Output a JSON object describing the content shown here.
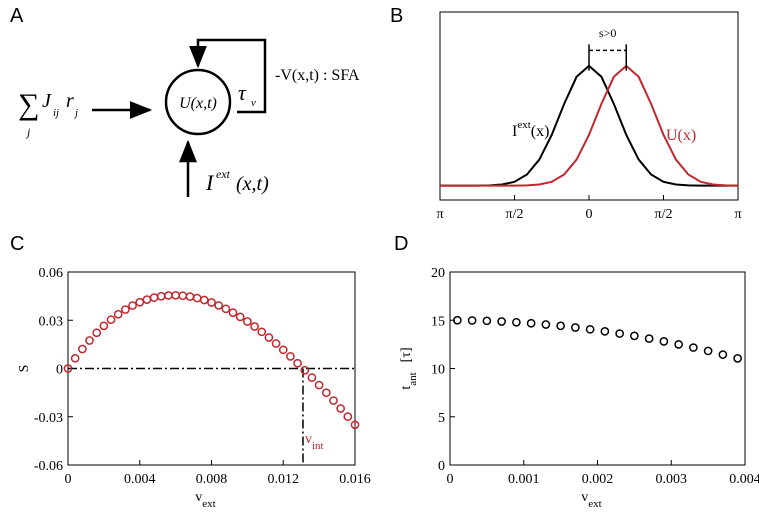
{
  "panel_labels": [
    "A",
    "B",
    "C",
    "D"
  ],
  "diagram": {
    "input_sum": {
      "symbol": "∑",
      "index": "j",
      "term": "J",
      "term_sub": "ij",
      "rate": "r",
      "rate_sub": "j"
    },
    "node": "U(x,t)",
    "time_constant": {
      "symbol": "τ",
      "sub": "v"
    },
    "feedback": "-V(x,t) : SFA",
    "external": {
      "symbol": "I",
      "sup": "ext",
      "args": "(x,t)"
    }
  },
  "chart_data": [
    {
      "type": "line",
      "xlim": [
        -3.1416,
        3.1416
      ],
      "ylim": [
        -0.12,
        1.45
      ],
      "xticks": [
        {
          "value": -3.1416,
          "label": "π"
        },
        {
          "value": -1.5708,
          "label": "π/2"
        },
        0,
        {
          "value": 1.5708,
          "label": "π/2"
        },
        {
          "value": 3.1416,
          "label": "π"
        }
      ],
      "x": [
        -3.1416,
        -2.8798,
        -2.618,
        -2.3562,
        -2.0944,
        -1.8326,
        -1.5708,
        -1.309,
        -1.0472,
        -0.7854,
        -0.5236,
        -0.2618,
        0,
        0.2618,
        0.5236,
        0.7854,
        1.0472,
        1.309,
        1.5708,
        1.8326,
        2.0944,
        2.3562,
        2.618,
        2.8798,
        3.1416
      ],
      "series": [
        {
          "label": {
            "base": "I",
            "sup": "ext",
            "rest": "(x)"
          },
          "color": "#000000",
          "values": [
            0,
            0,
            0,
            0,
            0.0023,
            0.0094,
            0.032,
            0.093,
            0.218,
            0.424,
            0.683,
            0.909,
            1,
            0.909,
            0.683,
            0.424,
            0.218,
            0.093,
            0.032,
            0.0094,
            0.0023,
            0,
            0,
            0,
            0
          ]
        },
        {
          "label": {
            "base": "U(x)"
          },
          "color": "#c1272d",
          "values": [
            0,
            0,
            0,
            0,
            0,
            0,
            0,
            0.0023,
            0.0094,
            0.032,
            0.093,
            0.218,
            0.424,
            0.683,
            0.909,
            1,
            0.909,
            0.683,
            0.424,
            0.218,
            0.093,
            0.032,
            0.0094,
            0.0023,
            0
          ]
        }
      ],
      "shift": {
        "label": "s>0",
        "from": 0,
        "to": 0.7854
      }
    },
    {
      "type": "scatter",
      "xlim": [
        0,
        0.016
      ],
      "ylim": [
        -0.06,
        0.06
      ],
      "xticks": [
        0,
        0.004,
        0.008,
        0.012,
        0.016
      ],
      "yticks": [
        -0.06,
        -0.03,
        0,
        0.03,
        0.06
      ],
      "x_label": {
        "base": "v",
        "sub": "ext"
      },
      "y_label": {
        "base": "S"
      },
      "x": [
        0,
        0.0004,
        0.0008,
        0.0012,
        0.0016,
        0.002,
        0.0024,
        0.0028,
        0.0032,
        0.0036,
        0.004,
        0.0044,
        0.0048,
        0.0052,
        0.0056,
        0.006,
        0.0064,
        0.0068,
        0.0072,
        0.0076,
        0.008,
        0.0084,
        0.0088,
        0.0092,
        0.0096,
        0.01,
        0.0104,
        0.0108,
        0.0112,
        0.0116,
        0.012,
        0.0124,
        0.0128,
        0.0132,
        0.0136,
        0.014,
        0.0144,
        0.0148,
        0.0152,
        0.0156,
        0.016
      ],
      "series": [
        {
          "color": "#c1272d",
          "values": [
            0,
            0.00632,
            0.01212,
            0.01741,
            0.02221,
            0.02651,
            0.03035,
            0.03372,
            0.03664,
            0.03913,
            0.04119,
            0.04283,
            0.04408,
            0.04493,
            0.04541,
            0.04552,
            0.04528,
            0.0447,
            0.04379,
            0.04257,
            0.04103,
            0.03921,
            0.03711,
            0.03473,
            0.0321,
            0.02923,
            0.02612,
            0.0228,
            0.01926,
            0.01553,
            0.01162,
            0.00753,
            0.00328,
            -0.00111,
            -0.00564,
            -0.0103,
            -0.01506,
            -0.01993,
            -0.02488,
            -0.02991,
            -0.035
          ]
        }
      ],
      "reference_lines": {
        "y": 0,
        "x": 0.0131,
        "x_label": {
          "base": "v",
          "sub": "int"
        },
        "color": "#c1272d"
      }
    },
    {
      "type": "scatter",
      "xlim": [
        0,
        0.004
      ],
      "ylim": [
        0,
        20
      ],
      "xticks": [
        0,
        0.001,
        0.002,
        0.003,
        0.004
      ],
      "yticks": [
        0,
        5,
        10,
        15,
        20
      ],
      "x_label": {
        "base": "v",
        "sub": "ext"
      },
      "y_label": {
        "base": "t",
        "sub": "ant",
        "unit": "[τ]"
      },
      "x": [
        0.0001,
        0.0003,
        0.0005,
        0.0007,
        0.0009,
        0.0011,
        0.0013,
        0.0015,
        0.0017,
        0.0019,
        0.0021,
        0.0023,
        0.0025,
        0.0027,
        0.0029,
        0.0031,
        0.0033,
        0.0035,
        0.0037,
        0.0039
      ],
      "series": [
        {
          "color": "#000000",
          "values": [
            15.0,
            14.98,
            14.94,
            14.87,
            14.79,
            14.69,
            14.56,
            14.42,
            14.25,
            14.06,
            13.85,
            13.62,
            13.38,
            13.1,
            12.81,
            12.5,
            12.17,
            11.82,
            11.44,
            11.05
          ]
        }
      ]
    }
  ]
}
